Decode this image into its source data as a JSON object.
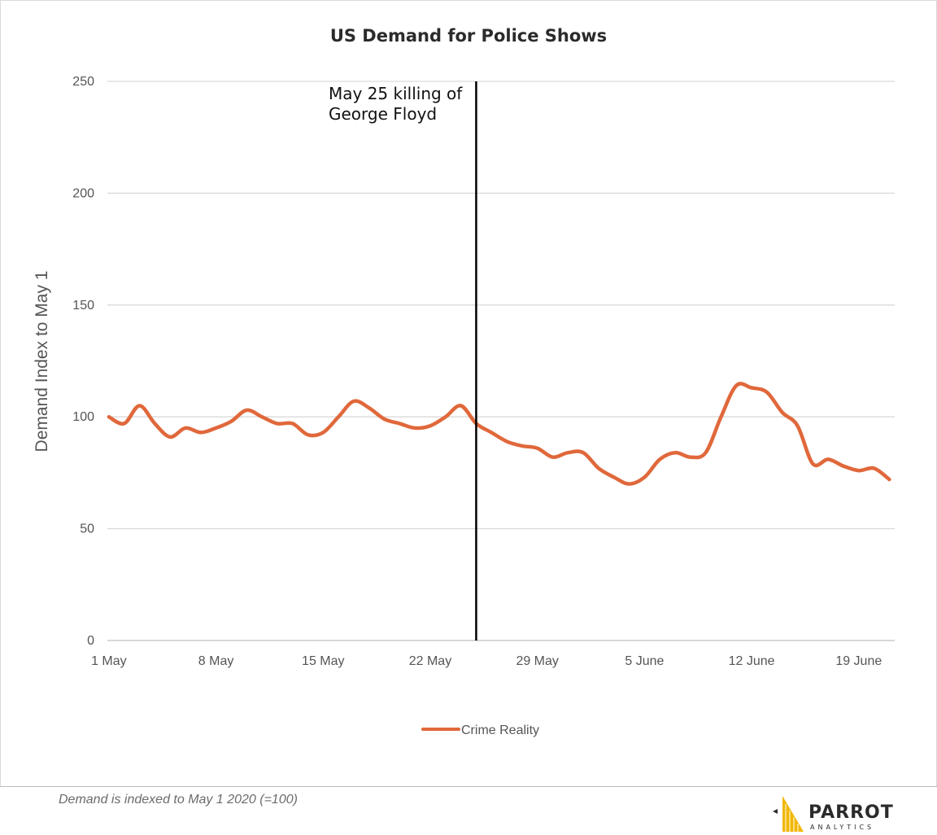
{
  "chart_data": {
    "type": "line",
    "title": "US Demand for Police Shows",
    "ylabel": "Demand Index to May 1",
    "xlabel": "",
    "ylim": [
      0,
      250
    ],
    "y_ticks": [
      "0",
      "50",
      "100",
      "150",
      "200",
      "250"
    ],
    "x_tick_labels": [
      "1 May",
      "8 May",
      "15 May",
      "22 May",
      "29 May",
      "5 June",
      "12 June",
      "19 June"
    ],
    "x_tick_days": [
      1,
      8,
      15,
      22,
      29,
      36,
      43,
      50
    ],
    "grid": true,
    "legend_position": "bottom",
    "series": [
      {
        "name": "Crime Reality",
        "color": "#e0683b",
        "x": [
          1,
          2,
          3,
          4,
          5,
          6,
          7,
          8,
          9,
          10,
          11,
          12,
          13,
          14,
          15,
          16,
          17,
          18,
          19,
          20,
          21,
          22,
          23,
          24,
          25,
          26,
          27,
          28,
          29,
          30,
          31,
          32,
          33,
          34,
          35,
          36,
          37,
          38,
          39,
          40,
          41,
          42,
          43,
          44,
          45,
          46,
          47,
          48,
          49,
          50,
          51,
          52
        ],
        "values": [
          100,
          97,
          105,
          97,
          91,
          95,
          93,
          95,
          98,
          103,
          100,
          97,
          97,
          92,
          93,
          100,
          107,
          104,
          99,
          97,
          95,
          96,
          100,
          105,
          97,
          93,
          89,
          87,
          86,
          82,
          84,
          84,
          77,
          73,
          70,
          73,
          81,
          84,
          82,
          84,
          100,
          114,
          113,
          111,
          102,
          96,
          79,
          81,
          78,
          76,
          77,
          72
        ]
      }
    ],
    "annotations": [
      {
        "x_day": 25,
        "text_line1": "May 25 killing of",
        "text_line2": "George Floyd",
        "line_color": "#000000"
      }
    ]
  },
  "footer": {
    "note": "Demand is indexed to May 1 2020 (=100)",
    "logo_word": "PARROT",
    "logo_sub": "ANALYTICS"
  },
  "colors": {
    "grid": "#d9d9d9",
    "line": "#e0683b",
    "annotation": "#000000",
    "logo_gold": "#f2b705"
  }
}
